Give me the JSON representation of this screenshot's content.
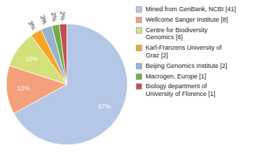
{
  "chart_data": {
    "type": "pie",
    "categories": [
      "Mined from GenBank, NCBI [41]",
      "Wellcome Sanger Institute [8]",
      "Centre for Biodiversity\nGenomics [6]",
      "Karl-Franzens University of\nGraz [2]",
      "Beijing Genomics Institute [2]",
      "Macrogen, Europe [1]",
      "Biology department of\nUniversity of Florence [1]"
    ],
    "values": [
      67,
      13,
      10,
      3,
      3,
      2,
      2
    ],
    "value_labels": [
      "67%",
      "13%",
      "10%",
      "3%",
      "3%",
      "2%",
      "2%"
    ],
    "colors": [
      "#b4c7e7",
      "#f4a07a",
      "#d4e07a",
      "#f5a623",
      "#9ab0d0",
      "#70ad47",
      "#c0504d"
    ],
    "data_labels": true,
    "legend": "right"
  }
}
